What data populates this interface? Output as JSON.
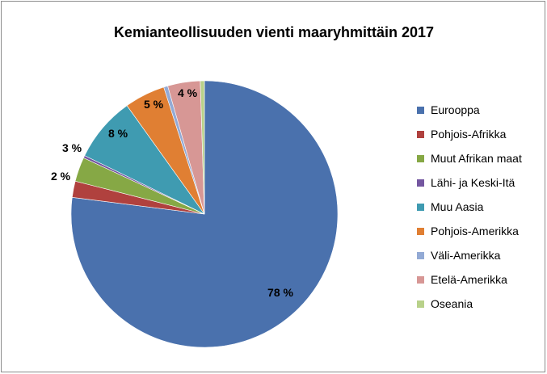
{
  "chart_data": {
    "type": "pie",
    "title": "Kemianteollisuuden vienti maaryhmittäin 2017",
    "categories": [
      "Eurooppa",
      "Pohjois-Afrikka",
      "Muut Afrikan maat",
      "Lähi- ja Keski-Itä",
      "Muu Aasia",
      "Pohjois-Amerikka",
      "Väli-Amerikka",
      "Etelä-Amerikka",
      "Oseania"
    ],
    "values": [
      78,
      2,
      3,
      0.3,
      8,
      5,
      0.5,
      4,
      0.5
    ],
    "data_labels": [
      "78 %",
      "2 %",
      "3 %",
      "",
      "8 %",
      "5 %",
      "",
      "4 %",
      ""
    ],
    "colors": [
      "#4a71ad",
      "#b0413e",
      "#86a845",
      "#7456a0",
      "#3f9bb1",
      "#e07f33",
      "#93aad5",
      "#d79795",
      "#b8d18a"
    ],
    "legend_position": "right",
    "grid": false
  }
}
